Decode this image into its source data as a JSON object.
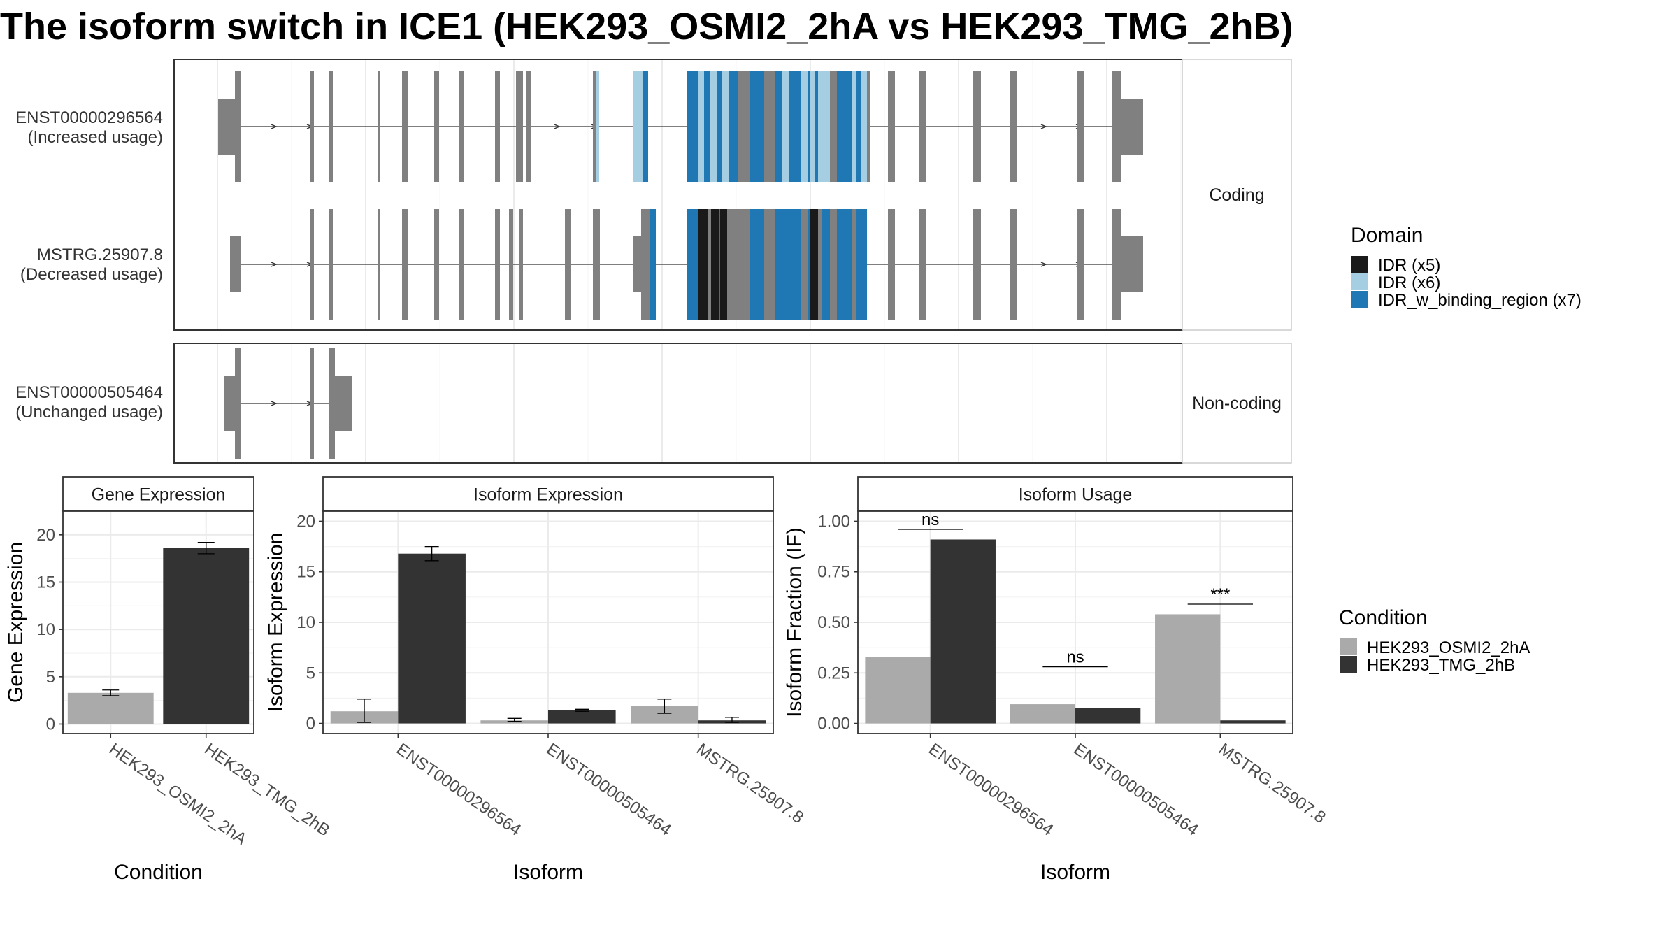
{
  "title": "The isoform switch in ICE1 (HEK293_OSMI2_2hA vs HEK293_TMG_2hB)",
  "colors": {
    "exon": "#808080",
    "IDR_x5": "#1a1a1a",
    "IDR_x6": "#a6cee3",
    "IDR_w_binding_region_x7": "#1f78b4",
    "cond1": "#aaaaaa",
    "cond2": "#333333"
  },
  "structure": {
    "coding_strip": "Coding",
    "noncoding_strip": "Non-coding",
    "transcripts": [
      {
        "id": "ENST00000296564",
        "usage": "(Increased usage)",
        "group": "Coding"
      },
      {
        "id": "MSTRG.25907.8",
        "usage": "(Decreased usage)",
        "group": "Coding"
      },
      {
        "id": "ENST00000505464",
        "usage": "(Unchanged usage)",
        "group": "Non-coding"
      }
    ]
  },
  "legend_domain": {
    "title": "Domain",
    "items": [
      "IDR (x5)",
      "IDR (x6)",
      "IDR_w_binding_region (x7)"
    ]
  },
  "legend_condition": {
    "title": "Condition",
    "items": [
      "HEK293_OSMI2_2hA",
      "HEK293_TMG_2hB"
    ]
  },
  "chart_data": [
    {
      "type": "bar",
      "title": "Gene Expression",
      "xlabel": "Condition",
      "ylabel": "Gene Expression",
      "ylim": [
        -1,
        22.5
      ],
      "yticks": [
        0,
        5,
        10,
        15,
        20
      ],
      "categories": [
        "HEK293_OSMI2_2hA",
        "HEK293_TMG_2hB"
      ],
      "values": [
        3.3,
        18.6
      ],
      "error": [
        [
          3.0,
          3.6
        ],
        [
          18.0,
          19.2
        ]
      ]
    },
    {
      "type": "bar",
      "title": "Isoform Expression",
      "xlabel": "Isoform",
      "ylabel": "Isoform Expression",
      "ylim": [
        -1,
        21
      ],
      "yticks": [
        0,
        5,
        10,
        15,
        20
      ],
      "categories": [
        "ENST00000296564",
        "ENST00000505464",
        "MSTRG.25907.8"
      ],
      "series": [
        {
          "name": "HEK293_OSMI2_2hA",
          "values": [
            1.2,
            0.3,
            1.7
          ],
          "error": [
            [
              0.1,
              2.4
            ],
            [
              0.2,
              0.5
            ],
            [
              1.0,
              2.4
            ]
          ]
        },
        {
          "name": "HEK293_TMG_2hB",
          "values": [
            16.8,
            1.3,
            0.3
          ],
          "error": [
            [
              16.1,
              17.5
            ],
            [
              1.2,
              1.4
            ],
            [
              0.1,
              0.6
            ]
          ]
        }
      ]
    },
    {
      "type": "bar",
      "title": "Isoform Usage",
      "xlabel": "Isoform",
      "ylabel": "Isoform Fraction (IF)",
      "ylim": [
        -0.05,
        1.05
      ],
      "yticks": [
        "0.00",
        "0.25",
        "0.50",
        "0.75",
        "1.00"
      ],
      "categories": [
        "ENST00000296564",
        "ENST00000505464",
        "MSTRG.25907.8"
      ],
      "series": [
        {
          "name": "HEK293_OSMI2_2hA",
          "values": [
            0.33,
            0.095,
            0.54
          ]
        },
        {
          "name": "HEK293_TMG_2hB",
          "values": [
            0.91,
            0.075,
            0.015
          ]
        }
      ],
      "significance": [
        {
          "category": "ENST00000296564",
          "label": "ns",
          "y": 0.96
        },
        {
          "category": "ENST00000505464",
          "label": "ns",
          "y": 0.28
        },
        {
          "category": "MSTRG.25907.8",
          "label": "***",
          "y": 0.59
        }
      ]
    }
  ]
}
